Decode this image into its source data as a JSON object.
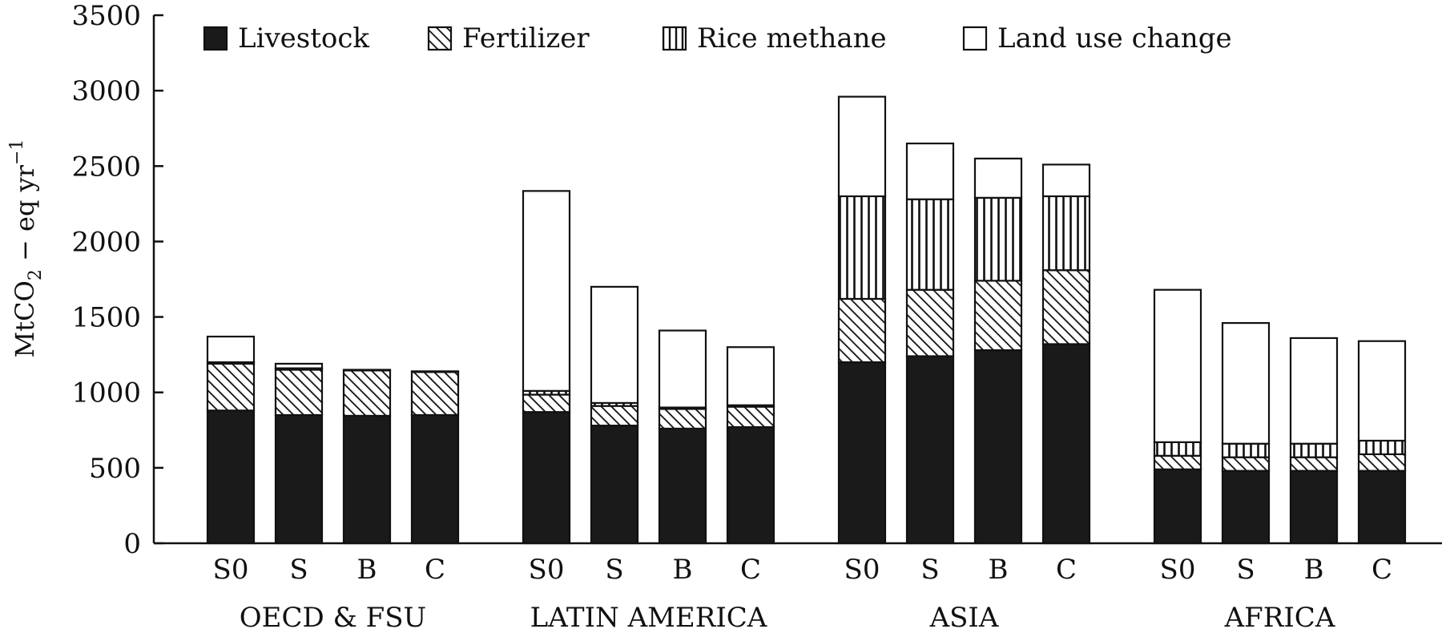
{
  "chart_data": {
    "type": "bar",
    "stacked": true,
    "ylabel_main": "MtCO",
    "ylabel_sub": "2",
    "ylabel_rest": " − eq yr",
    "ylabel_sup": "−1",
    "xlabel": "",
    "ylim": [
      0,
      3500
    ],
    "yticks": [
      0,
      500,
      1000,
      1500,
      2000,
      2500,
      3000,
      3500
    ],
    "legend_position": "top",
    "groups": [
      {
        "name": "OECD & FSU",
        "categories": [
          "S0",
          "S",
          "B",
          "C"
        ]
      },
      {
        "name": "LATIN AMERICA",
        "categories": [
          "S0",
          "S",
          "B",
          "C"
        ]
      },
      {
        "name": "ASIA",
        "categories": [
          "S0",
          "S",
          "B",
          "C"
        ]
      },
      {
        "name": "AFRICA",
        "categories": [
          "S0",
          "S",
          "B",
          "C"
        ]
      }
    ],
    "series": [
      {
        "name": "Livestock",
        "pattern": "solid",
        "values": [
          880,
          850,
          845,
          850,
          870,
          780,
          760,
          770,
          1200,
          1240,
          1280,
          1320,
          490,
          480,
          480,
          480
        ]
      },
      {
        "name": "Fertilizer",
        "pattern": "diagonal",
        "values": [
          310,
          300,
          300,
          285,
          115,
          130,
          130,
          135,
          420,
          440,
          460,
          490,
          90,
          90,
          90,
          110
        ]
      },
      {
        "name": "Rice methane",
        "pattern": "vertical",
        "values": [
          10,
          10,
          0,
          0,
          25,
          20,
          10,
          10,
          680,
          600,
          550,
          490,
          90,
          90,
          90,
          90
        ]
      },
      {
        "name": "Land use change",
        "pattern": "white",
        "values": [
          170,
          30,
          5,
          5,
          1325,
          770,
          510,
          385,
          660,
          370,
          260,
          210,
          1010,
          800,
          700,
          660
        ]
      }
    ]
  }
}
